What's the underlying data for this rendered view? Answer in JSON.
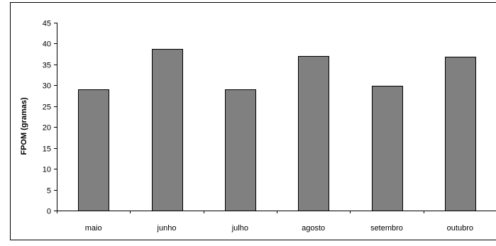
{
  "chart_data": {
    "type": "bar",
    "title": "",
    "xlabel": "",
    "ylabel": "FPOM (gramas)",
    "categories": [
      "maio",
      "junho",
      "julho",
      "agosto",
      "setembro",
      "outubro"
    ],
    "values": [
      29.1,
      38.8,
      29.1,
      37.0,
      29.9,
      36.8
    ],
    "ylim": [
      0,
      45
    ],
    "yticks": [
      "0",
      "5",
      "10",
      "15",
      "20",
      "25",
      "30",
      "35",
      "40",
      "45"
    ],
    "grid": false,
    "legend": "none",
    "colors": {
      "bar_fill": "#808080",
      "bar_stroke": "#000000",
      "axis": "#000000",
      "frame": "#000000"
    }
  }
}
